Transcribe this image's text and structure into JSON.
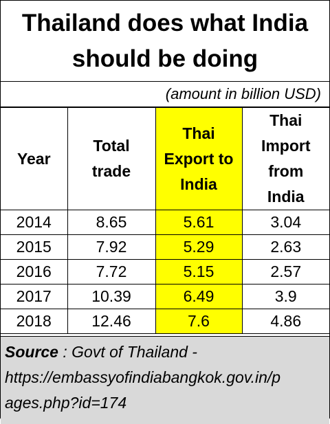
{
  "title": {
    "line1": "Thailand does what India",
    "line2": "should be doing"
  },
  "unit_note": "(amount in billion USD)",
  "colors": {
    "highlight": "#ffff00",
    "footer_bg": "#d9d9d9"
  },
  "table": {
    "headers": {
      "year": [
        "Year"
      ],
      "total": [
        "Total",
        "trade"
      ],
      "export": [
        "Thai",
        "Export to",
        "India"
      ],
      "import": [
        "Thai",
        "Import",
        "from",
        "India"
      ]
    },
    "rows": [
      {
        "year": "2014",
        "total": "8.65",
        "export": "5.61",
        "import": "3.04"
      },
      {
        "year": "2015",
        "total": "7.92",
        "export": "5.29",
        "import": "2.63"
      },
      {
        "year": "2016",
        "total": "7.72",
        "export": "5.15",
        "import": "2.57"
      },
      {
        "year": "2017",
        "total": "10.39",
        "export": "6.49",
        "import": "3.9"
      },
      {
        "year": "2018",
        "total": "12.46",
        "export": "7.6",
        "import": "4.86"
      }
    ]
  },
  "source": {
    "label": "Source",
    "text": " : Govt of Thailand -",
    "url_line1": "https://embassyofindiabangkok.gov.in/p",
    "url_line2": "ages.php?id=174"
  }
}
